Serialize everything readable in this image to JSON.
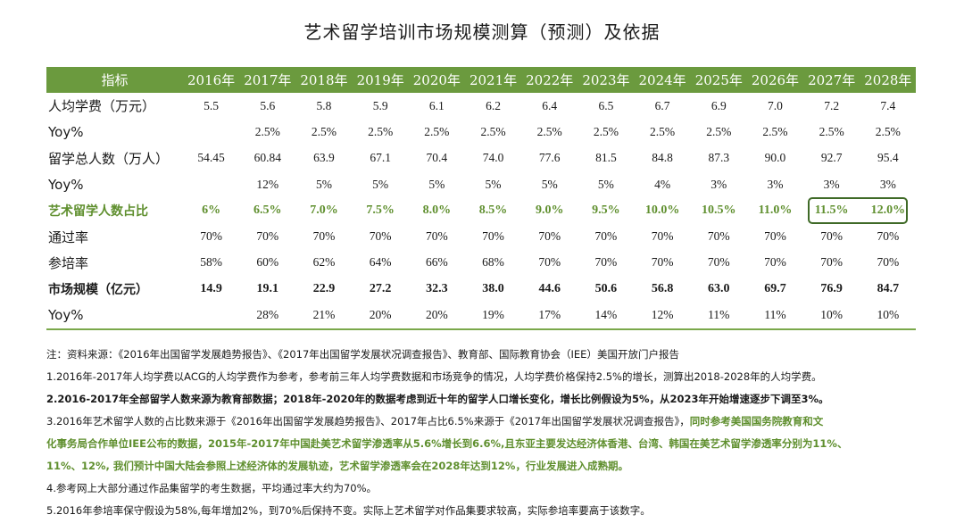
{
  "title": "艺术留学培训市场规模测算（预测）及依据",
  "table": {
    "header_label": "指标",
    "years": [
      "2016年",
      "2017年",
      "2018年",
      "2019年",
      "2020年",
      "2021年",
      "2022年",
      "2023年",
      "2024年",
      "2025年",
      "2026年",
      "2027年",
      "2028年"
    ],
    "rows": [
      {
        "label": "人均学费（万元）",
        "values": [
          "5.5",
          "5.6",
          "5.8",
          "5.9",
          "6.1",
          "6.2",
          "6.4",
          "6.5",
          "6.7",
          "6.9",
          "7.0",
          "7.2",
          "7.4"
        ]
      },
      {
        "label": "Yoy%",
        "values": [
          "",
          "2.5%",
          "2.5%",
          "2.5%",
          "2.5%",
          "2.5%",
          "2.5%",
          "2.5%",
          "2.5%",
          "2.5%",
          "2.5%",
          "2.5%",
          "2.5%"
        ]
      },
      {
        "label": "留学总人数（万人）",
        "values": [
          "54.45",
          "60.84",
          "63.9",
          "67.1",
          "70.4",
          "74.0",
          "77.6",
          "81.5",
          "84.8",
          "87.3",
          "90.0",
          "92.7",
          "95.4"
        ]
      },
      {
        "label": "Yoy%",
        "values": [
          "",
          "12%",
          "5%",
          "5%",
          "5%",
          "5%",
          "5%",
          "5%",
          "4%",
          "3%",
          "3%",
          "3%",
          "3%"
        ]
      },
      {
        "label": "艺术留学人数占比",
        "values": [
          "6%",
          "6.5%",
          "7.0%",
          "7.5%",
          "8.0%",
          "8.5%",
          "9.0%",
          "9.5%",
          "10.0%",
          "10.5%",
          "11.0%",
          "11.5%",
          "12.0%"
        ]
      },
      {
        "label": "通过率",
        "values": [
          "70%",
          "70%",
          "70%",
          "70%",
          "70%",
          "70%",
          "70%",
          "70%",
          "70%",
          "70%",
          "70%",
          "70%",
          "70%"
        ]
      },
      {
        "label": "参培率",
        "values": [
          "58%",
          "60%",
          "62%",
          "64%",
          "66%",
          "68%",
          "70%",
          "70%",
          "70%",
          "70%",
          "70%",
          "70%",
          "70%"
        ]
      },
      {
        "label": "市场规模（亿元）",
        "values": [
          "14.9",
          "19.1",
          "22.9",
          "27.2",
          "32.3",
          "38.0",
          "44.6",
          "50.6",
          "56.8",
          "63.0",
          "69.7",
          "76.9",
          "84.7"
        ]
      },
      {
        "label": "Yoy%",
        "values": [
          "",
          "28%",
          "21%",
          "20%",
          "20%",
          "19%",
          "17%",
          "14%",
          "12%",
          "11%",
          "11%",
          "10%",
          "10%"
        ]
      }
    ]
  },
  "notes": {
    "source": "注：资料来源：《2016年出国留学发展趋势报告》、《2017年出国留学发展状况调查报告》、教育部、国际教育协会（IEE）美国开放门户报告",
    "n1": "1.2016年-2017年人均学费以ACG的人均学费作为参考，参考前三年人均学费数据和市场竞争的情况，人均学费价格保持2.5%的增长，测算出2018-2028年的人均学费。",
    "n2": "2.2016-2017年全部留学人数来源为教育部数据；2018年-2020年的数据考虑到近十年的留学人口增长变化，增长比例假设为5%，从2023年开始增速逐步下调至3%。",
    "n3_plain": "3.2016年艺术留学人数的占比数来源于《2016年出国留学发展趋势报告》、2017年占比6.5%来源于《2017年出国留学发展状况调查报告》，",
    "n3_green_1": "同时参考美国国务院教育和文",
    "n3_green_2": "化事务局合作单位IEE公布的数据，2015年-2017年中国赴美艺术留学渗透率从5.6%增长到6.6%,且东亚主要发达经济体香港、台湾、韩国在美艺术留学渗透率分别为11%、",
    "n3_green_3": "11%、12%, 我们预计中国大陆会参照上述经济体的发展轨迹，艺术留学渗透率会在2028年达到12%，行业发展进入成熟期。",
    "n4": "4.参考网上大部分通过作品集留学的考生数据，平均通过率大约为70%。",
    "n5": "5.2016年参培率保守假设为58%,每年增加2%，到70%后保持不变。实际上艺术留学对作品集要求较高，实际参培率要高于该数字。"
  },
  "colors": {
    "header_green": "#6b9a3e",
    "text_green": "#5f8f2e",
    "box_dark_green": "#3f6a27"
  }
}
